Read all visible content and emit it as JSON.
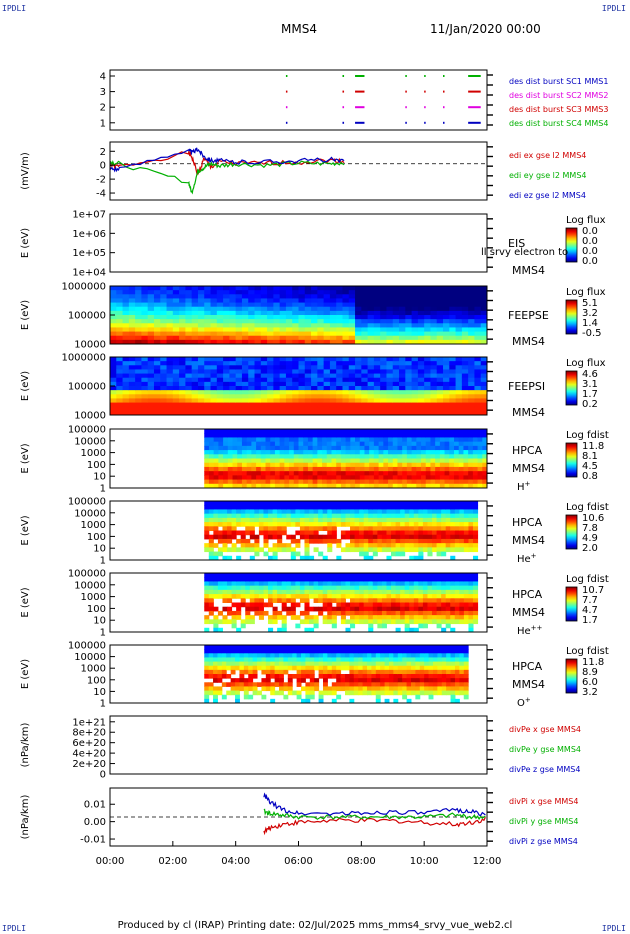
{
  "corner_label": "IPDLI",
  "title": "MMS4",
  "date": "11/Jan/2020 00:00",
  "footer": "Produced by cl (IRAP)   Printing date: 02/Jul/2025   mms_mms4_srvy_vue_web2.cl",
  "time_axis": {
    "range_hours": [
      0,
      12
    ],
    "ticks": [
      "00:00",
      "02:00",
      "04:00",
      "06:00",
      "08:00",
      "10:00",
      "12:00"
    ]
  },
  "colors": {
    "red": "#d00000",
    "green": "#00b000",
    "blue": "#0000c0",
    "magenta": "#e000e0"
  },
  "panels": [
    {
      "id": "burst",
      "type": "markers",
      "y_ticks": [
        "4",
        "3",
        "2",
        "1"
      ],
      "legend": [
        {
          "text": "des dist burst SC1 MMS1",
          "color": "#0000c0"
        },
        {
          "text": "des dist burst SC2 MMS2",
          "color": "#e000e0"
        },
        {
          "text": "des dist burst SC3 MMS3",
          "color": "#d00000"
        },
        {
          "text": "des dist burst SC4 MMS4",
          "color": "#00b000"
        }
      ]
    },
    {
      "id": "edi",
      "type": "line",
      "ylabel": "(mV/m)",
      "y_ticks": [
        "2",
        "0",
        "-2",
        "-4"
      ],
      "ylim": [
        -5,
        3
      ],
      "legend": [
        {
          "text": "edi ex gse l2 MMS4",
          "color": "#d00000"
        },
        {
          "text": "edi ey gse l2 MMS4",
          "color": "#00b000"
        },
        {
          "text": "edi ez gse l2 MMS4",
          "color": "#0000c0"
        }
      ]
    },
    {
      "id": "eis",
      "type": "spectrogram",
      "ylabel": "E (eV)",
      "y_ticks": [
        "1e+07",
        "1e+06",
        "1e+05",
        "1e+04"
      ],
      "label_lines": [
        "EIS",
        "MMS4"
      ],
      "overlay_text": "ll srvy electron to",
      "colorbar": {
        "title": "Log flux",
        "ticks": [
          "0.0",
          "0.0",
          "0.0",
          "0.0"
        ]
      }
    },
    {
      "id": "feepse",
      "type": "spectrogram",
      "ylabel": "E (eV)",
      "y_ticks": [
        "1000000",
        "100000",
        "10000"
      ],
      "label_lines": [
        "FEEPSE",
        "MMS4"
      ],
      "colorbar": {
        "title": "Log flux",
        "ticks": [
          "5.1",
          "3.2",
          "1.4",
          "-0.5"
        ]
      }
    },
    {
      "id": "feepsi",
      "type": "spectrogram",
      "ylabel": "E (eV)",
      "y_ticks": [
        "1000000",
        "100000",
        "10000"
      ],
      "label_lines": [
        "FEEPSI",
        "MMS4"
      ],
      "colorbar": {
        "title": "Log flux",
        "ticks": [
          "4.6",
          "3.1",
          "1.7",
          "0.2"
        ]
      }
    },
    {
      "id": "hpca_h",
      "type": "spectrogram",
      "ylabel": "E (eV)",
      "y_ticks": [
        "100000",
        "10000",
        "1000",
        "100",
        "10",
        "1"
      ],
      "label_lines": [
        "HPCA",
        "MMS4"
      ],
      "species": "H",
      "species_sup": "+",
      "colorbar": {
        "title": "Log fdist",
        "ticks": [
          "11.8",
          "8.1",
          "4.5",
          "0.8"
        ]
      }
    },
    {
      "id": "hpca_he",
      "type": "spectrogram",
      "ylabel": "E (eV)",
      "y_ticks": [
        "100000",
        "10000",
        "1000",
        "100",
        "10",
        "1"
      ],
      "label_lines": [
        "HPCA",
        "MMS4"
      ],
      "species": "He",
      "species_sup": "+",
      "colorbar": {
        "title": "Log fdist",
        "ticks": [
          "10.6",
          "7.8",
          "4.9",
          "2.0"
        ]
      }
    },
    {
      "id": "hpca_hepp",
      "type": "spectrogram",
      "ylabel": "E (eV)",
      "y_ticks": [
        "100000",
        "10000",
        "1000",
        "100",
        "10",
        "1"
      ],
      "label_lines": [
        "HPCA",
        "MMS4"
      ],
      "species": "He",
      "species_sup": "++",
      "colorbar": {
        "title": "Log fdist",
        "ticks": [
          "10.7",
          "7.7",
          "4.7",
          "1.7"
        ]
      }
    },
    {
      "id": "hpca_o",
      "type": "spectrogram",
      "ylabel": "E (eV)",
      "y_ticks": [
        "100000",
        "10000",
        "1000",
        "100",
        "10",
        "1"
      ],
      "label_lines": [
        "HPCA",
        "MMS4"
      ],
      "species": "O",
      "species_sup": "+",
      "colorbar": {
        "title": "Log fdist",
        "ticks": [
          "11.8",
          "8.9",
          "6.0",
          "3.2"
        ]
      }
    },
    {
      "id": "divpe",
      "type": "line",
      "ylabel": "(nPa/km)",
      "y_ticks": [
        "1e+21",
        "8e+20",
        "6e+20",
        "4e+20",
        "2e+20",
        "0"
      ],
      "ylim": [
        0,
        1.0
      ],
      "legend": [
        {
          "text": "divPe x gse MMS4",
          "color": "#d00000"
        },
        {
          "text": "divPe y gse MMS4",
          "color": "#00b000"
        },
        {
          "text": "divPe z gse MMS4",
          "color": "#0000c0"
        }
      ]
    },
    {
      "id": "divpi",
      "type": "line",
      "ylabel": "(nPa/km)",
      "y_ticks": [
        "0.01",
        "0.00",
        "-0.01"
      ],
      "ylim": [
        -0.016,
        0.016
      ],
      "legend": [
        {
          "text": "divPi x gse MMS4",
          "color": "#d00000"
        },
        {
          "text": "divPi y gse MMS4",
          "color": "#00b000"
        },
        {
          "text": "divPi z gse MMS4",
          "color": "#0000c0"
        }
      ]
    }
  ],
  "chart_data": {
    "type": "line",
    "title": "MMS4",
    "x_range_hours": [
      0,
      12
    ],
    "series_description": "multi-panel time series and energy spectrograms",
    "edi": {
      "x": [
        0,
        0.3,
        2.5,
        2.6,
        2.8,
        3.0,
        3.2,
        3.5,
        4,
        5,
        6,
        7,
        7.5
      ],
      "ex": [
        -0.2,
        -0.4,
        1.5,
        1.0,
        -1.5,
        0.8,
        -0.5,
        0.3,
        0.0,
        0.1,
        0.2,
        0.5,
        0.3
      ],
      "ey": [
        0.3,
        0.0,
        -2.5,
        -4.0,
        -1.0,
        -0.5,
        0.0,
        -0.3,
        0.0,
        -0.2,
        0.1,
        0.0,
        0.2
      ],
      "ez": [
        -0.6,
        -0.8,
        2.0,
        1.5,
        2.0,
        1.0,
        0.5,
        0.4,
        0.2,
        0.3,
        0.4,
        0.6,
        0.2
      ]
    },
    "divpi": {
      "x": [
        4.9,
        5.1,
        5.5,
        6.0,
        7.0,
        8.0,
        9.0,
        10.0,
        11.0,
        11.5,
        12.0
      ],
      "x_comp": [
        -0.008,
        -0.006,
        -0.004,
        -0.003,
        -0.002,
        -0.002,
        -0.002,
        -0.003,
        -0.004,
        -0.003,
        -0.001
      ],
      "y_comp": [
        0.003,
        0.002,
        0.001,
        0.0,
        0.0,
        0.0,
        0.0,
        0.0,
        0.001,
        0.0,
        0.0
      ],
      "z_comp": [
        0.012,
        0.008,
        0.004,
        0.002,
        0.002,
        0.002,
        0.003,
        0.002,
        0.004,
        0.003,
        0.001
      ]
    }
  }
}
